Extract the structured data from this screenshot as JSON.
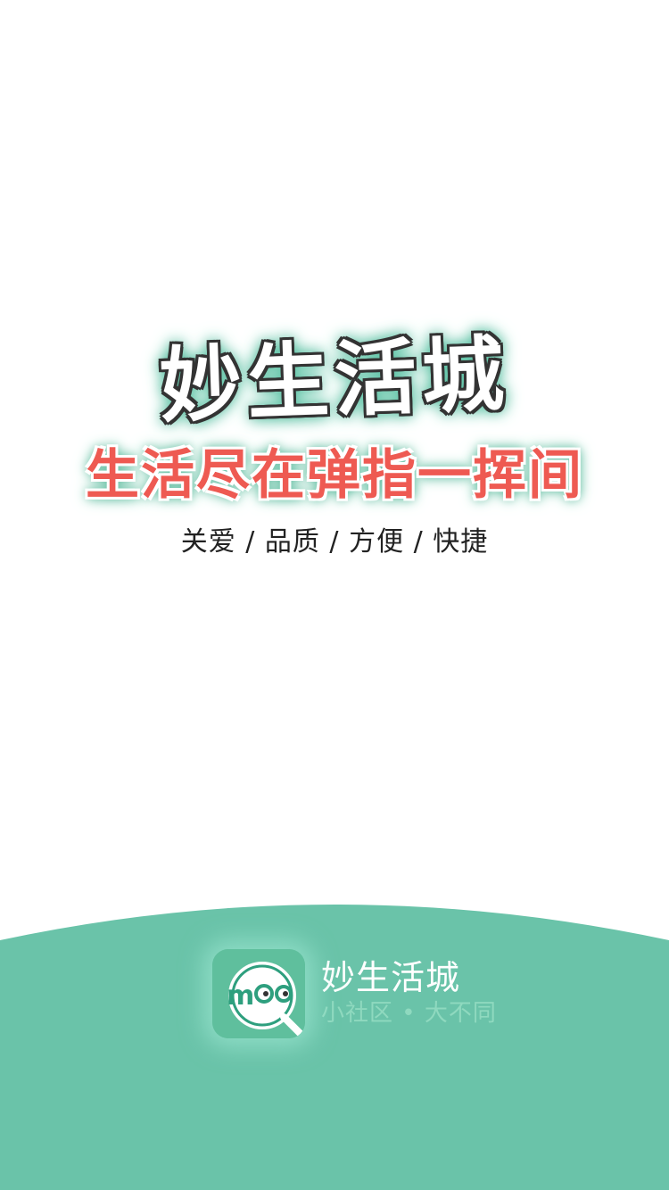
{
  "splash": {
    "title": "妙生活城",
    "slogan": "生活尽在弹指一挥间",
    "values": "关爱 / 品质 / 方便 / 快捷"
  },
  "brand": {
    "name": "妙生活城",
    "tagline": "小社区 • 大不同",
    "icon": "mao-magnifier-logo-icon"
  },
  "colors": {
    "accent_green": "#6ac3a9",
    "slogan_red": "#ee5a52",
    "background": "#ffffff"
  }
}
